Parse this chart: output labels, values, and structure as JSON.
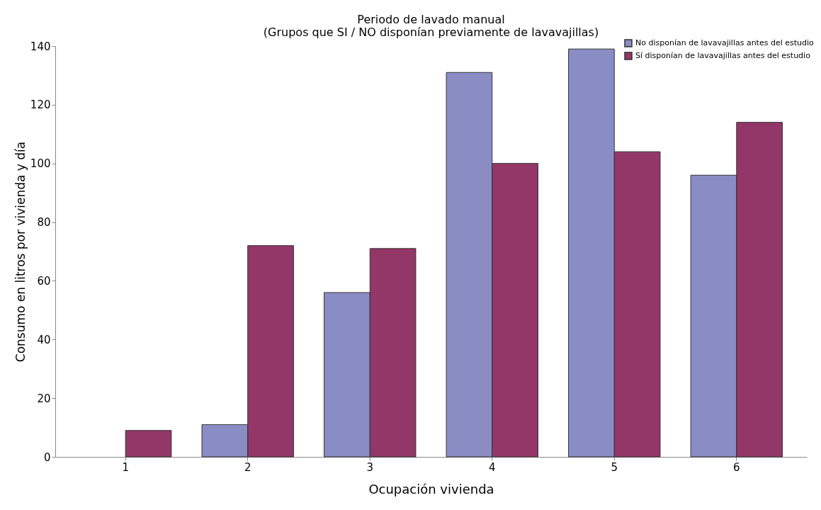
{
  "chart_data": {
    "type": "bar",
    "title": [
      "Periodo de lavado manual",
      "(Grupos que SI / NO  disponían previamente de lavavajillas)"
    ],
    "xlabel": "Ocupación vivienda",
    "ylabel": "Consumo en litros por vivienda y día",
    "categories": [
      "1",
      "2",
      "3",
      "4",
      "5",
      "6"
    ],
    "series": [
      {
        "name": "No disponían de lavavajillas antes del estudio",
        "color": "#8a8cc4",
        "values": [
          null,
          11,
          56,
          131,
          139,
          96
        ]
      },
      {
        "name": "Sí disponían de lavavajillas antes del estudio",
        "color": "#933668",
        "values": [
          9,
          72,
          71,
          100,
          104,
          114
        ]
      }
    ],
    "ylim": [
      0,
      140
    ],
    "yticks": [
      0,
      20,
      40,
      60,
      80,
      100,
      120,
      140
    ],
    "grid": false,
    "legend": "top right"
  }
}
